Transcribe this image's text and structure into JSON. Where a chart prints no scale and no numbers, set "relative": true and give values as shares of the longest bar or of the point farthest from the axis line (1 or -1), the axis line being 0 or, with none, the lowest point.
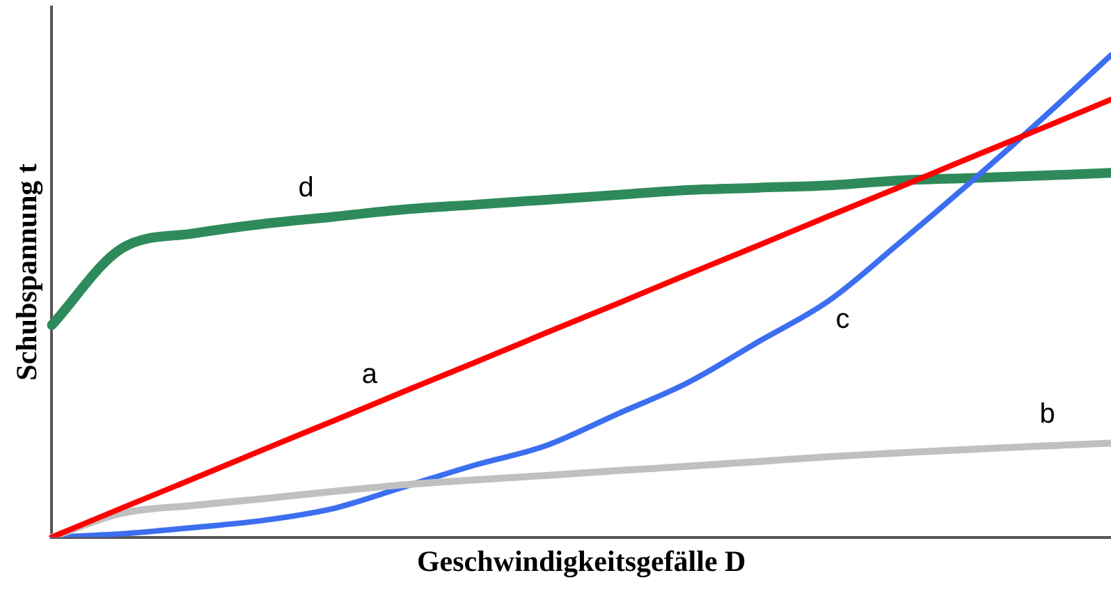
{
  "chart_data": {
    "type": "line",
    "relative": true,
    "xlabel": "Geschwindigkeitsgefälle D",
    "ylabel": "Schubspannung t",
    "legend": false,
    "grid": false,
    "marker": "none",
    "line_style": "solid",
    "categories": [
      null,
      null,
      null,
      null,
      null,
      null,
      null,
      null,
      null,
      null,
      null,
      null,
      null,
      null,
      null,
      null
    ],
    "series": [
      {
        "name": "a",
        "color": "#ff0000",
        "values": [
          0,
          0.061,
          0.121,
          0.182,
          0.242,
          0.303,
          0.363,
          0.424,
          0.484,
          0.545,
          0.605,
          0.666,
          0.726,
          0.787,
          0.847,
          0.908
        ]
      },
      {
        "name": "b",
        "color": "#c0c0c0",
        "values": [
          0,
          0.05,
          0.066,
          0.08,
          0.095,
          0.109,
          0.119,
          0.128,
          0.138,
          0.147,
          0.157,
          0.167,
          0.175,
          0.182,
          0.189,
          0.195
        ]
      },
      {
        "name": "c",
        "color": "#3c6ef0",
        "values": [
          0,
          0.007,
          0.02,
          0.035,
          0.06,
          0.105,
          0.15,
          0.19,
          0.255,
          0.32,
          0.405,
          0.49,
          0.61,
          0.735,
          0.865,
          1.0
        ]
      },
      {
        "name": "d",
        "color": "#2e8a5a",
        "values": [
          0.44,
          0.6,
          0.63,
          0.65,
          0.665,
          0.68,
          0.69,
          0.7,
          0.71,
          0.72,
          0.725,
          0.73,
          0.74,
          0.745,
          0.75,
          0.756
        ]
      }
    ]
  }
}
